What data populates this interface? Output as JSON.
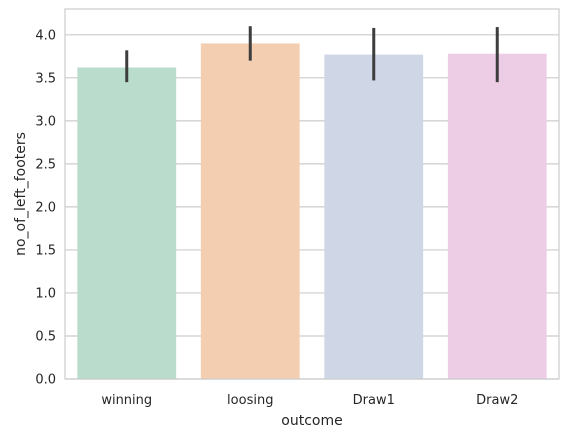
{
  "chart_data": {
    "type": "bar",
    "categories": [
      "winning",
      "loosing",
      "Draw1",
      "Draw2"
    ],
    "values": [
      3.62,
      3.9,
      3.77,
      3.78
    ],
    "error_bars": [
      {
        "low": 3.45,
        "high": 3.82
      },
      {
        "low": 3.7,
        "high": 4.1
      },
      {
        "low": 3.47,
        "high": 4.08
      },
      {
        "low": 3.45,
        "high": 4.09
      }
    ],
    "colors": [
      "#b9dccc",
      "#f3ceb1",
      "#cfd6e6",
      "#edcde6"
    ],
    "error_color": "#3d3d3d",
    "grid_color": "#cccccc",
    "frame_color": "#cccccc",
    "grid": "horizontal",
    "xlabel": "outcome",
    "ylabel": "no_of_left_footers",
    "ylim": [
      0,
      4.3
    ],
    "yticks": [
      "0.0",
      "0.5",
      "1.0",
      "1.5",
      "2.0",
      "2.5",
      "3.0",
      "3.5",
      "4.0"
    ]
  }
}
